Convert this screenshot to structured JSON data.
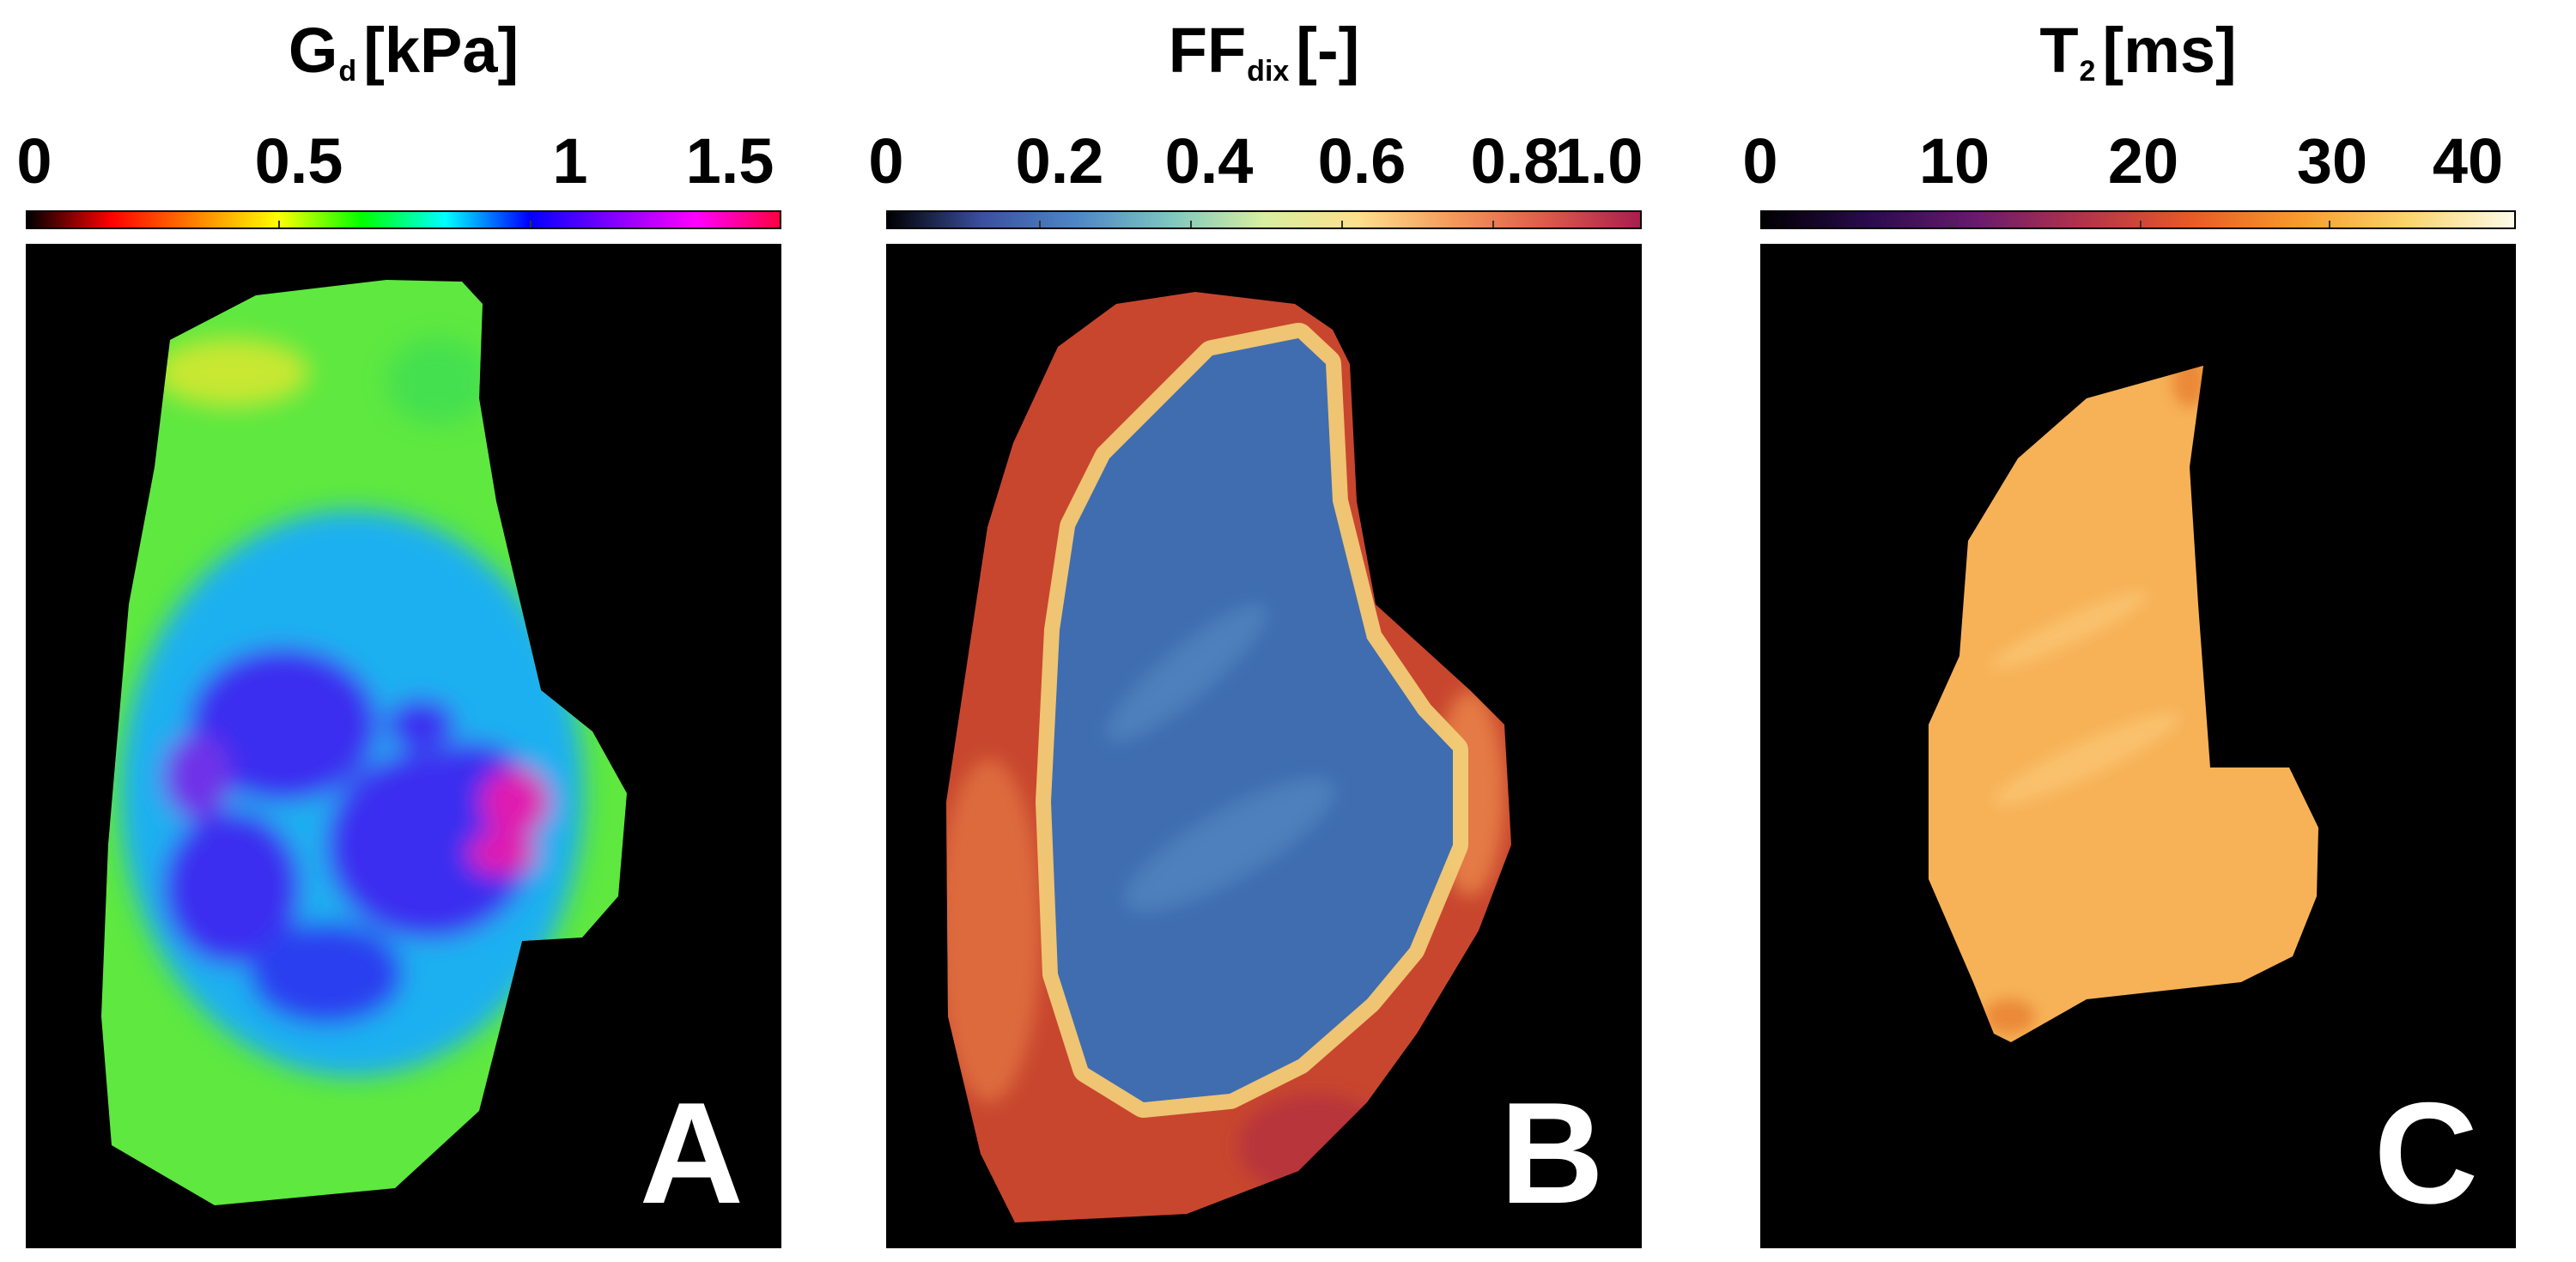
{
  "panels": [
    {
      "id": "A",
      "title_main": "G",
      "title_sub": "d",
      "title_rest": "[kPa]",
      "ticks": [
        "0",
        "0.5",
        "1",
        "1.5"
      ],
      "tick_fractions": [
        0,
        0.333,
        0.667,
        1
      ],
      "colorbar_colors": [
        "#000000",
        "#ff0000",
        "#ff8000",
        "#ffff00",
        "#00ff00",
        "#00ffff",
        "#0000ff",
        "#8000ff",
        "#ff00ff",
        "#ff0040"
      ],
      "letter": "A"
    },
    {
      "id": "B",
      "title_main": "FF",
      "title_sub": "dix",
      "title_rest": "[-]",
      "ticks": [
        "0",
        "0.2",
        "0.4",
        "0.6",
        "0.8",
        "1.0"
      ],
      "tick_fractions": [
        0,
        0.2,
        0.4,
        0.6,
        0.8,
        1
      ],
      "colorbar_colors": [
        "#000000",
        "#3b4fa0",
        "#4d86c6",
        "#7dc6c0",
        "#d8efa0",
        "#fde08c",
        "#f59a5a",
        "#dd5a4a",
        "#a91e4e"
      ],
      "letter": "B"
    },
    {
      "id": "C",
      "title_main": "T",
      "title_sub": "2",
      "title_rest": "[ms]",
      "ticks": [
        "0",
        "10",
        "20",
        "30",
        "40"
      ],
      "tick_fractions": [
        0,
        0.25,
        0.5,
        0.75,
        1
      ],
      "colorbar_colors": [
        "#000000",
        "#2a0b4e",
        "#6a1a6e",
        "#b3334a",
        "#e85a26",
        "#f89b2c",
        "#fbd46b",
        "#fcfbe8"
      ],
      "letter": "C"
    }
  ],
  "region_colors": {
    "A_outer": "#5ee840",
    "A_inner": "#1ab0f0",
    "A_deep": "#3a2ff0",
    "A_hot": "#e01ab0",
    "B_rim": "#c8462e",
    "B_edge": "#f3d27a",
    "B_core": "#3f6db0",
    "C_fill": "#f7b257",
    "C_edge": "#e5782a"
  }
}
